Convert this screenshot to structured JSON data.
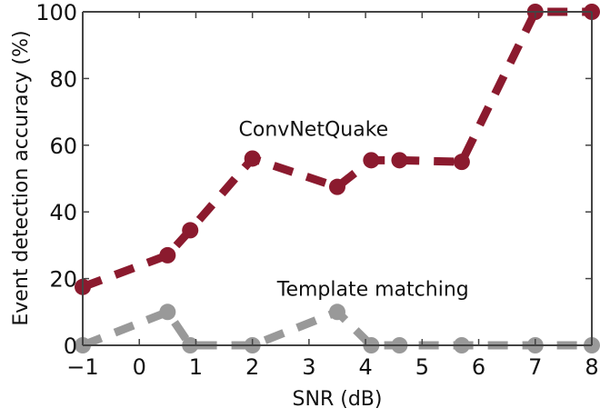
{
  "chart_data": {
    "type": "line",
    "title": "",
    "xlabel": "SNR (dB)",
    "ylabel": "Event detection accuracy (%)",
    "xlim": [
      -1,
      8
    ],
    "ylim": [
      0,
      100
    ],
    "xticks": [
      -1,
      0,
      1,
      2,
      3,
      4,
      5,
      6,
      7,
      8
    ],
    "xtick_labels": [
      "−1",
      "0",
      "1",
      "2",
      "3",
      "4",
      "5",
      "6",
      "7",
      "8"
    ],
    "yticks": [
      0,
      20,
      40,
      60,
      80,
      100
    ],
    "ytick_labels": [
      "0",
      "20",
      "40",
      "60",
      "80",
      "100"
    ],
    "grid": false,
    "series": [
      {
        "name": "ConvNetQuake",
        "color": "#8b1a2e",
        "style": "dashed",
        "marker": "circle",
        "x": [
          -1,
          0.5,
          0.9,
          2,
          3.5,
          4.1,
          4.6,
          5.7,
          7,
          8
        ],
        "y": [
          17.5,
          27,
          34.5,
          56,
          47.5,
          55.5,
          55.5,
          55,
          100,
          100
        ]
      },
      {
        "name": "Template matching",
        "color": "#999999",
        "style": "dashed",
        "marker": "circle",
        "x": [
          -1,
          0.5,
          0.9,
          2,
          3.5,
          4.1,
          4.6,
          5.7,
          7,
          8
        ],
        "y": [
          0,
          10,
          0,
          0,
          10,
          0,
          0,
          0,
          0,
          0
        ]
      }
    ],
    "annotations": [
      {
        "text": "ConvNetQuake",
        "x": 2.4,
        "y": 65
      },
      {
        "text": "Template matching",
        "x": 3.4,
        "y": 17
      }
    ]
  }
}
